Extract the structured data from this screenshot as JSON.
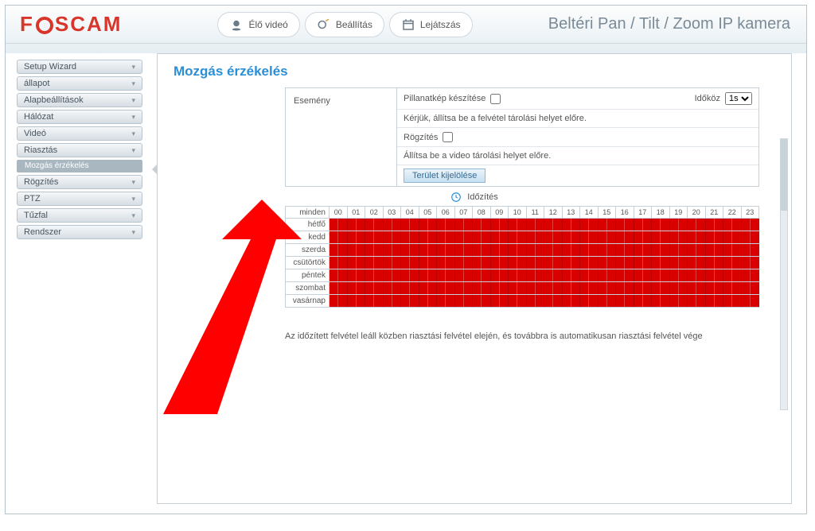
{
  "brand": "FOSCAM",
  "header_title": "Beltéri Pan / Tilt / Zoom IP kamera",
  "tabs": {
    "live": "Élő videó",
    "settings": "Beállítás",
    "playback": "Lejátszás"
  },
  "sidebar": {
    "items": [
      "Setup Wizard",
      "állapot",
      "Alapbeállítások",
      "Hálózat",
      "Videó",
      "Riasztás"
    ],
    "sub_active": "Mozgás érzékelés",
    "items2": [
      "Rögzítés",
      "PTZ",
      "Tűzfal",
      "Rendszer"
    ]
  },
  "page": {
    "title": "Mozgás érzékelés",
    "event_label": "Esemény",
    "snapshot_label": "Pillanatkép készítése",
    "interval_label": "Időköz",
    "interval_value": "1s",
    "snapshot_note": "Kérjük, állítsa be a felvétel tárolási helyet előre.",
    "record_label": "Rögzítés",
    "record_note": "Állítsa be a video tárolási helyet előre.",
    "area_button": "Terület kijelölése",
    "timing_label": "Időzítés",
    "footer_note": "Az időzített felvétel leáll közben riasztási felvétel elején, és továbbra is automatikusan riasztási felvétel vége"
  },
  "schedule": {
    "days": [
      "minden",
      "hétfő",
      "kedd",
      "szerda",
      "csütörtök",
      "péntek",
      "szombat",
      "vasárnap"
    ],
    "hours": [
      "00",
      "01",
      "02",
      "03",
      "04",
      "05",
      "06",
      "07",
      "08",
      "09",
      "10",
      "11",
      "12",
      "13",
      "14",
      "15",
      "16",
      "17",
      "18",
      "19",
      "20",
      "21",
      "22",
      "23"
    ],
    "cell_color": "#d90000",
    "cells_per_hour": 2
  },
  "colors": {
    "accent_blue": "#2a8fd6",
    "brand_red": "#d8362a",
    "arrow_red": "#ff0000"
  }
}
